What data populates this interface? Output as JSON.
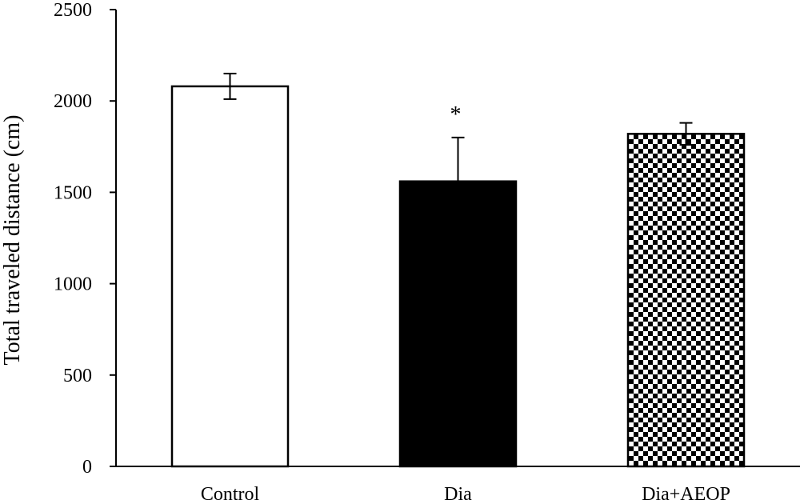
{
  "chart_data": {
    "type": "bar",
    "title": "",
    "xlabel": "",
    "ylabel": "Total traveled distance (cm)",
    "categories": [
      "Control",
      "Dia",
      "Dia+AEOP"
    ],
    "values": [
      2080,
      1560,
      1820
    ],
    "errors": [
      70,
      240,
      60
    ],
    "fills": [
      "white",
      "black",
      "checker"
    ],
    "annotations": [
      "",
      "*",
      ""
    ],
    "ylim": [
      0,
      2500
    ],
    "yticks": [
      0,
      500,
      1000,
      1500,
      2000,
      2500
    ],
    "grid": false,
    "legend": "none"
  },
  "colors": {
    "stroke": "#000000",
    "background": "#ffffff"
  }
}
